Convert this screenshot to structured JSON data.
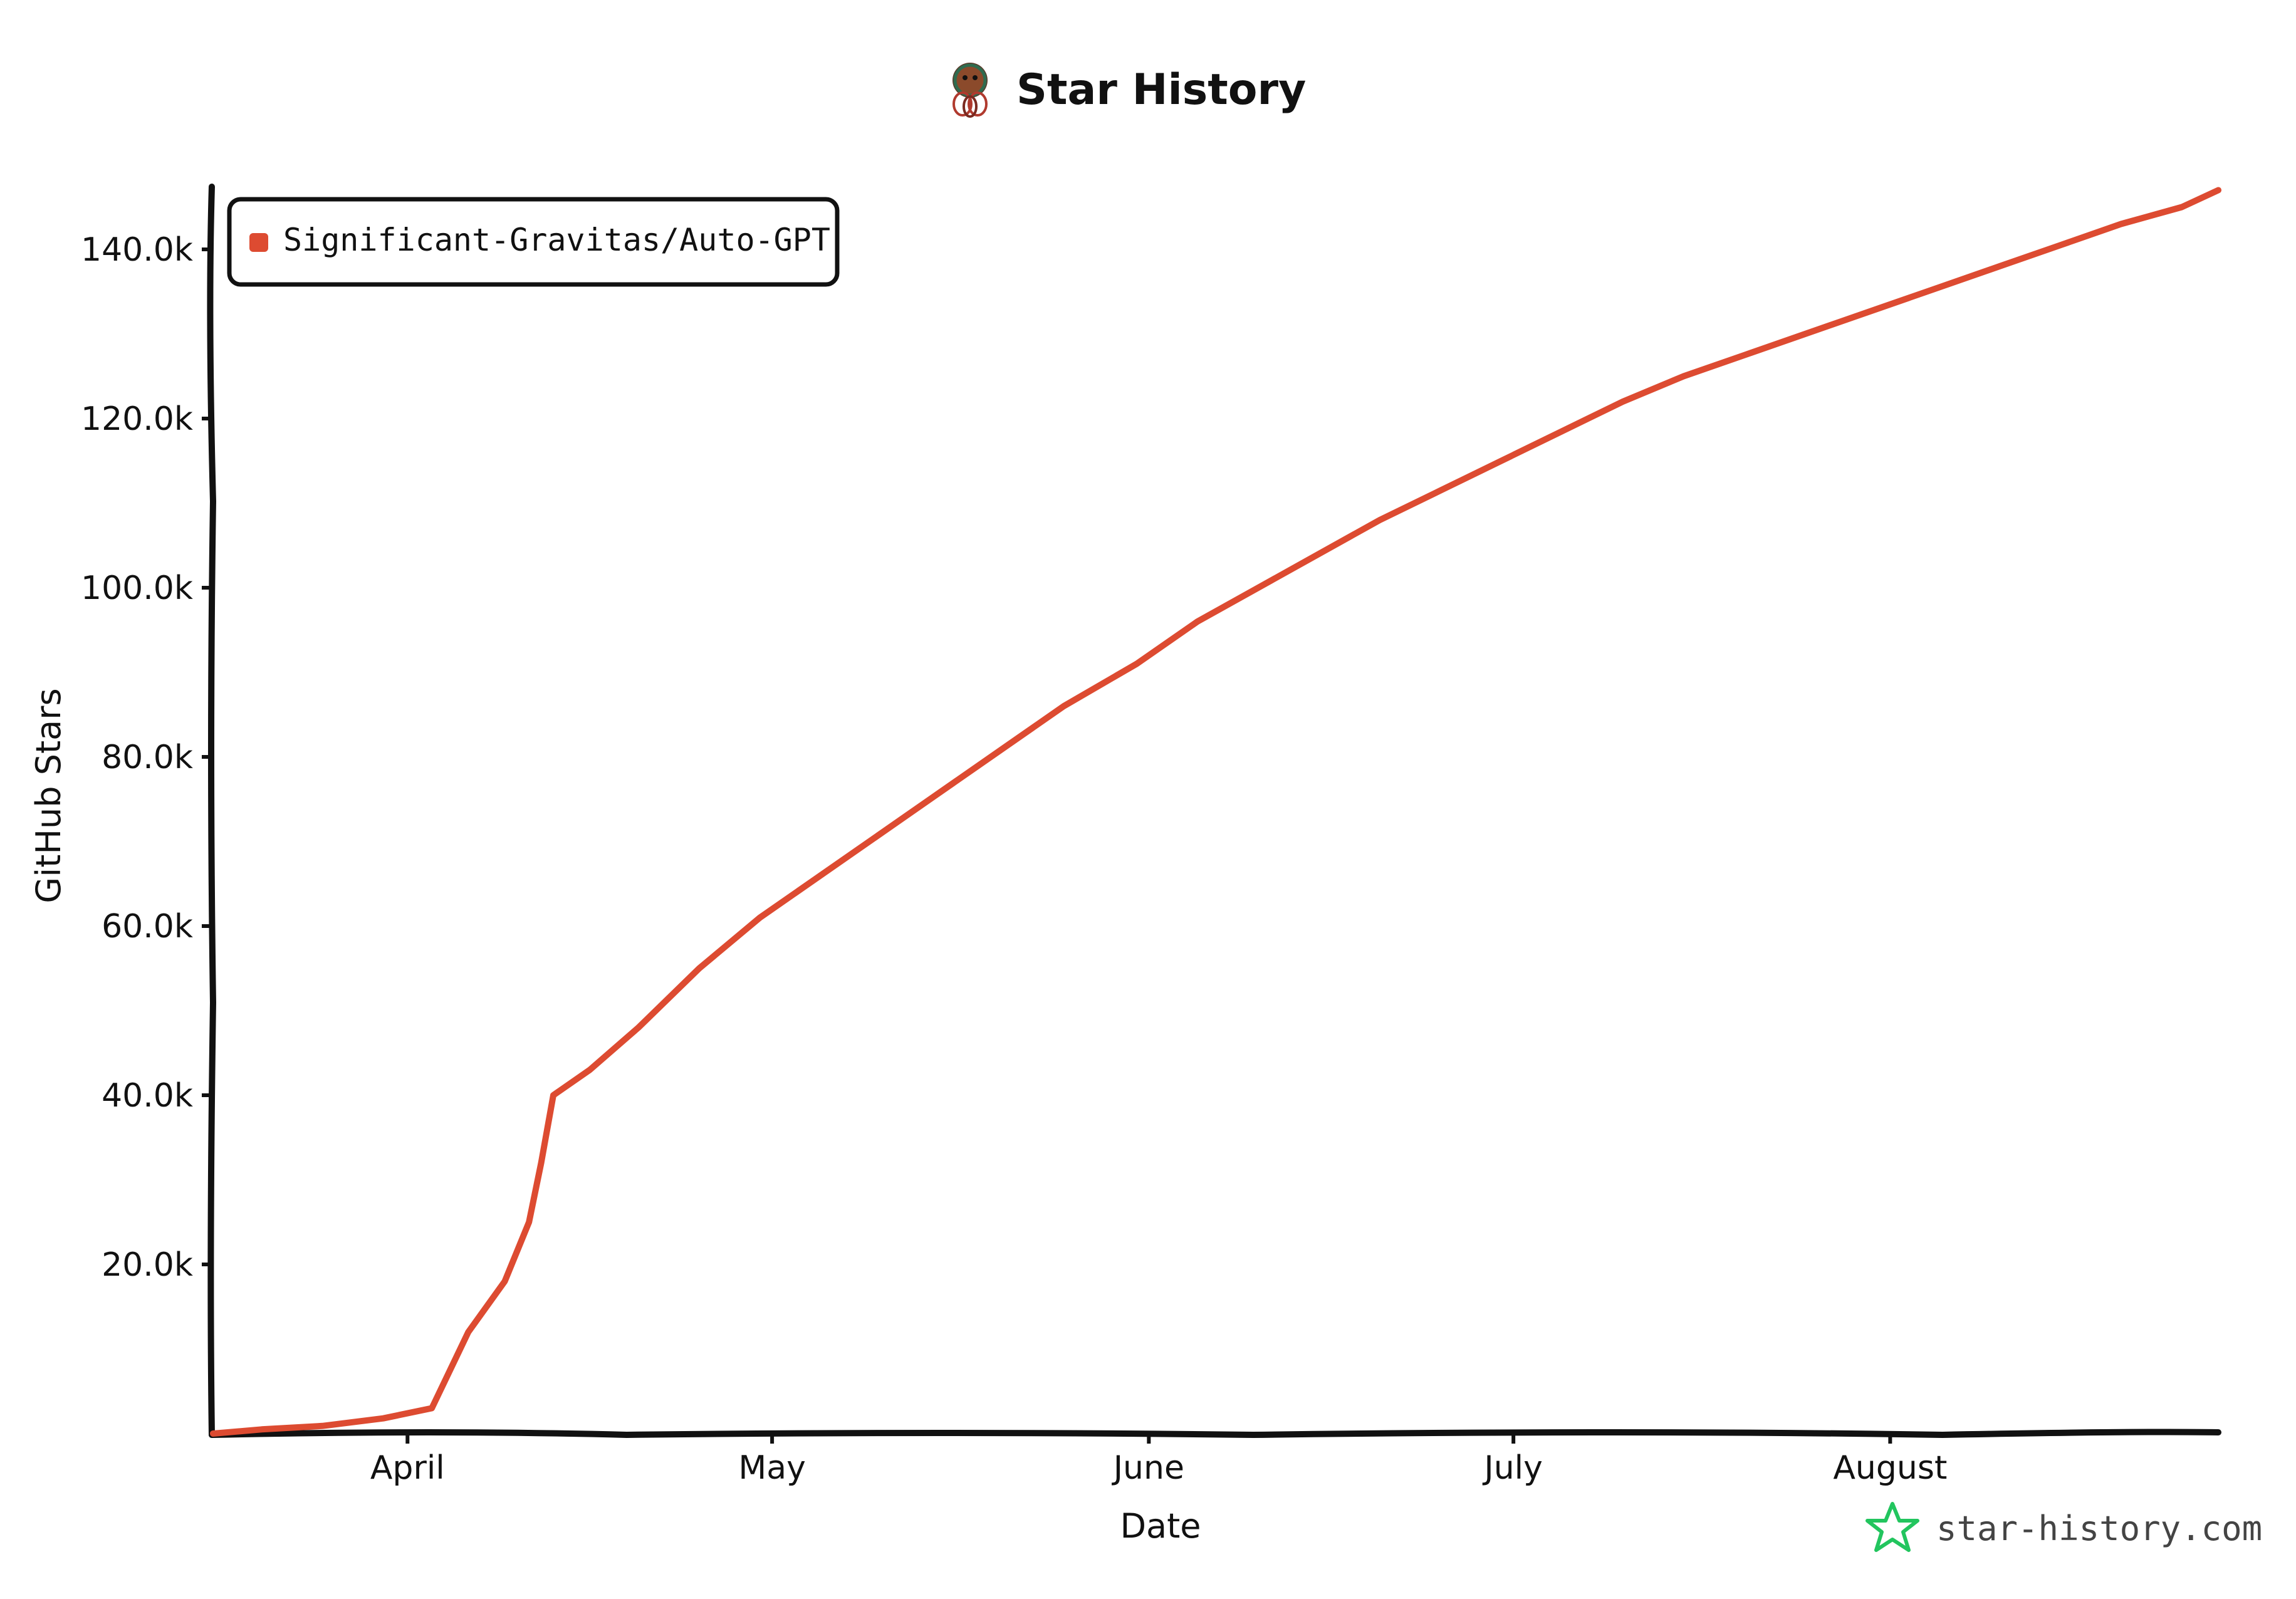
{
  "chart_data": {
    "type": "line",
    "title": "Star History",
    "xlabel": "Date",
    "ylabel": "GitHub Stars",
    "x_ticks": [
      "April",
      "May",
      "June",
      "July",
      "August"
    ],
    "y_ticks": [
      "20.0k",
      "40.0k",
      "60.0k",
      "80.0k",
      "100.0k",
      "120.0k",
      "140.0k"
    ],
    "x_range": [
      "2023-03-16",
      "2023-08-28"
    ],
    "ylim": [
      0,
      148000
    ],
    "grid": false,
    "legend_position": "top-left",
    "series": [
      {
        "name": "Significant-Gravitas/Auto-GPT",
        "color": "#dd4b31",
        "points": [
          [
            "2023-03-16",
            0
          ],
          [
            "2023-03-20",
            500
          ],
          [
            "2023-03-25",
            900
          ],
          [
            "2023-03-30",
            1800
          ],
          [
            "2023-04-03",
            3000
          ],
          [
            "2023-04-06",
            12000
          ],
          [
            "2023-04-09",
            18000
          ],
          [
            "2023-04-11",
            25000
          ],
          [
            "2023-04-12",
            32000
          ],
          [
            "2023-04-13",
            40000
          ],
          [
            "2023-04-16",
            43000
          ],
          [
            "2023-04-20",
            48000
          ],
          [
            "2023-04-25",
            55000
          ],
          [
            "2023-04-30",
            61000
          ],
          [
            "2023-05-05",
            66000
          ],
          [
            "2023-05-10",
            71000
          ],
          [
            "2023-05-15",
            76000
          ],
          [
            "2023-05-20",
            81000
          ],
          [
            "2023-05-25",
            86000
          ],
          [
            "2023-05-31",
            91000
          ],
          [
            "2023-06-05",
            96000
          ],
          [
            "2023-06-10",
            100000
          ],
          [
            "2023-06-15",
            104000
          ],
          [
            "2023-06-20",
            108000
          ],
          [
            "2023-06-25",
            111500
          ],
          [
            "2023-06-30",
            115000
          ],
          [
            "2023-07-05",
            118500
          ],
          [
            "2023-07-10",
            122000
          ],
          [
            "2023-07-15",
            125000
          ],
          [
            "2023-07-20",
            127500
          ],
          [
            "2023-07-25",
            130000
          ],
          [
            "2023-07-31",
            133000
          ],
          [
            "2023-08-05",
            135500
          ],
          [
            "2023-08-10",
            138000
          ],
          [
            "2023-08-15",
            140500
          ],
          [
            "2023-08-20",
            143000
          ],
          [
            "2023-08-25",
            145000
          ],
          [
            "2023-08-28",
            147000
          ]
        ]
      }
    ]
  },
  "watermark": {
    "text": "star-history.com",
    "icon": "star-outline-icon",
    "icon_color": "#22c55e"
  },
  "title_icon": "octopus-logo-icon"
}
